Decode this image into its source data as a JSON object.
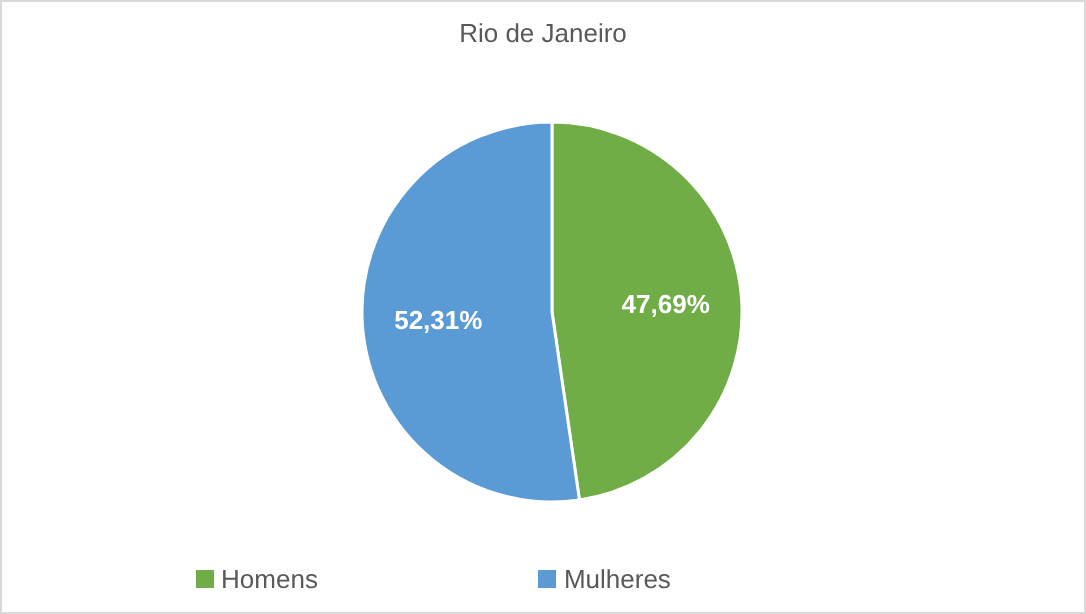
{
  "chart_data": {
    "type": "pie",
    "title": "Rio de Janeiro",
    "categories": [
      "Homens",
      "Mulheres"
    ],
    "values": [
      47.69,
      52.31
    ],
    "colors": [
      "#70ad47",
      "#5b9bd5"
    ],
    "value_labels": [
      "47,69%",
      "52,31%"
    ],
    "legend": "bottom"
  }
}
